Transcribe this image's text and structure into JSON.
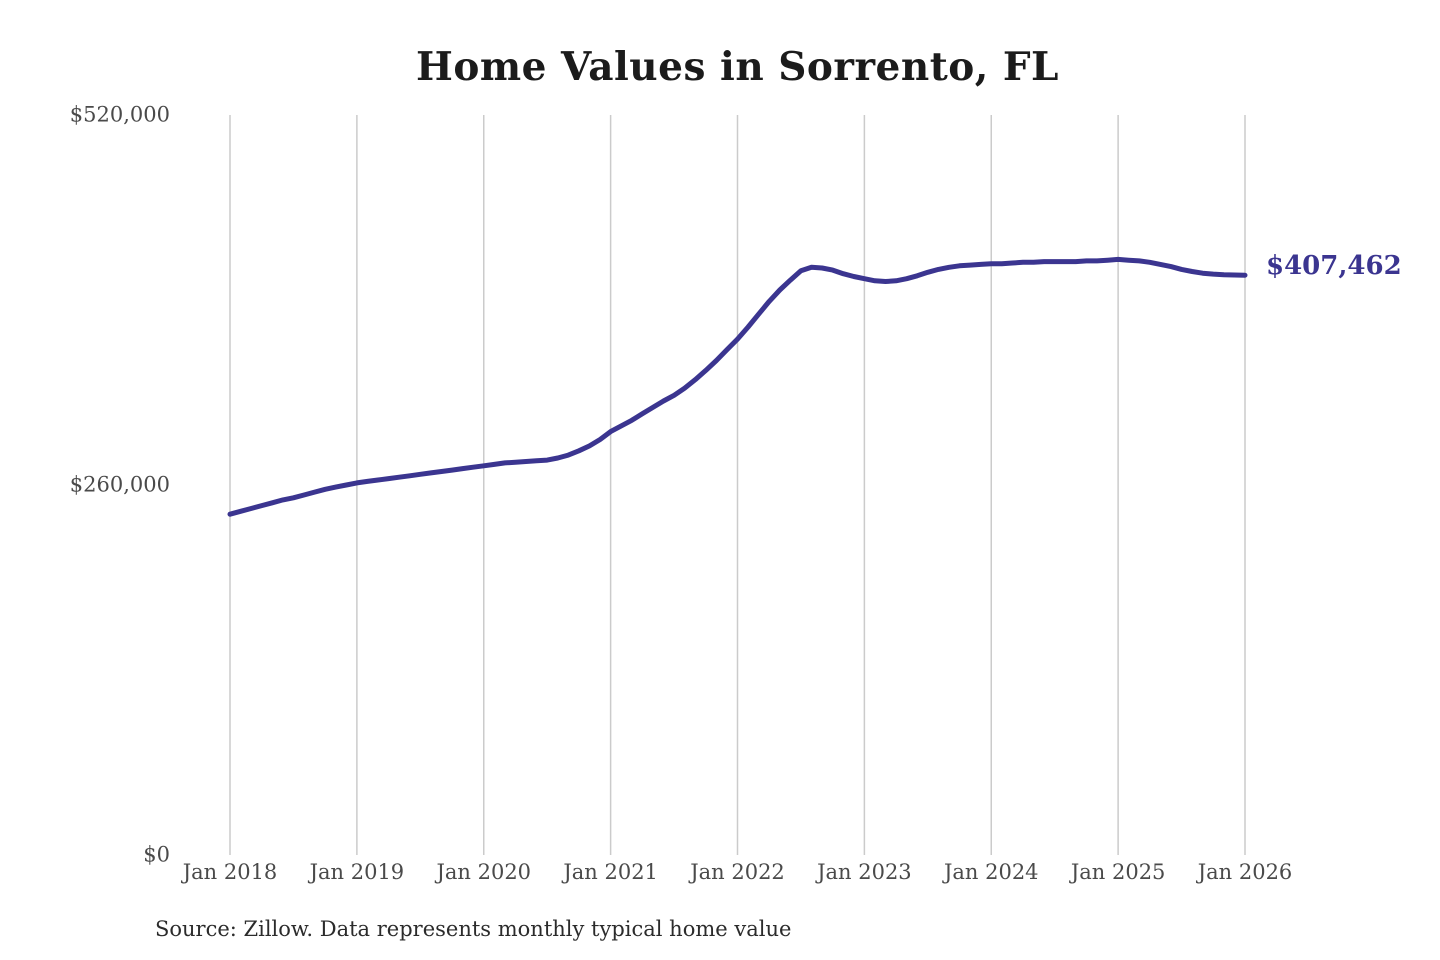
{
  "title": "Home Values in Sorrento, FL",
  "source_note": "Source: Zillow. Data represents monthly typical home value",
  "colors": {
    "line": "#3b3590",
    "grid": "#cbcbcb",
    "axis_text": "#4a4a4a",
    "title_text": "#1b1b1b",
    "end_label_text": "#3b3590",
    "background": "#ffffff"
  },
  "chart_data": {
    "type": "line",
    "title": "Home Values in Sorrento, FL",
    "xlabel": "",
    "ylabel": "",
    "ylim": [
      0,
      520000
    ],
    "grid": "vertical-only",
    "legend": "none",
    "x_tick_labels": [
      "Jan 2018",
      "Jan 2019",
      "Jan 2020",
      "Jan 2021",
      "Jan 2022",
      "Jan 2023",
      "Jan 2024",
      "Jan 2025",
      "Jan 2026"
    ],
    "y_ticks": [
      {
        "label": "$0",
        "value": 0
      },
      {
        "label": "$260,000",
        "value": 260000
      },
      {
        "label": "$520,000",
        "value": 520000
      }
    ],
    "last_value": 407462,
    "last_value_label": "$407,462",
    "series": [
      {
        "name": "Monthly typical home value",
        "unit": "USD",
        "x_start": "2018-01",
        "x_interval": "month",
        "values": [
          239500,
          241500,
          243500,
          245500,
          247500,
          249500,
          251000,
          253000,
          255000,
          257000,
          258500,
          260000,
          261500,
          262500,
          263500,
          264500,
          265500,
          266500,
          267500,
          268500,
          269500,
          270500,
          271500,
          272500,
          273500,
          274500,
          275500,
          276000,
          276500,
          277000,
          277500,
          279000,
          281000,
          284000,
          287500,
          292000,
          297500,
          301500,
          305500,
          310000,
          314500,
          319000,
          323000,
          328000,
          334000,
          340500,
          347500,
          355000,
          362500,
          371000,
          380000,
          389000,
          397000,
          404000,
          410500,
          413000,
          412500,
          411000,
          408500,
          406500,
          405000,
          403500,
          403000,
          403500,
          405000,
          407000,
          409500,
          411500,
          413000,
          414000,
          414500,
          415000,
          415500,
          415500,
          416000,
          416500,
          416500,
          417000,
          417000,
          417000,
          417000,
          417500,
          417500,
          418000,
          418500,
          418000,
          417500,
          416500,
          415000,
          413500,
          411500,
          410000,
          408800,
          408200,
          407800,
          407600,
          407462
        ]
      }
    ]
  }
}
